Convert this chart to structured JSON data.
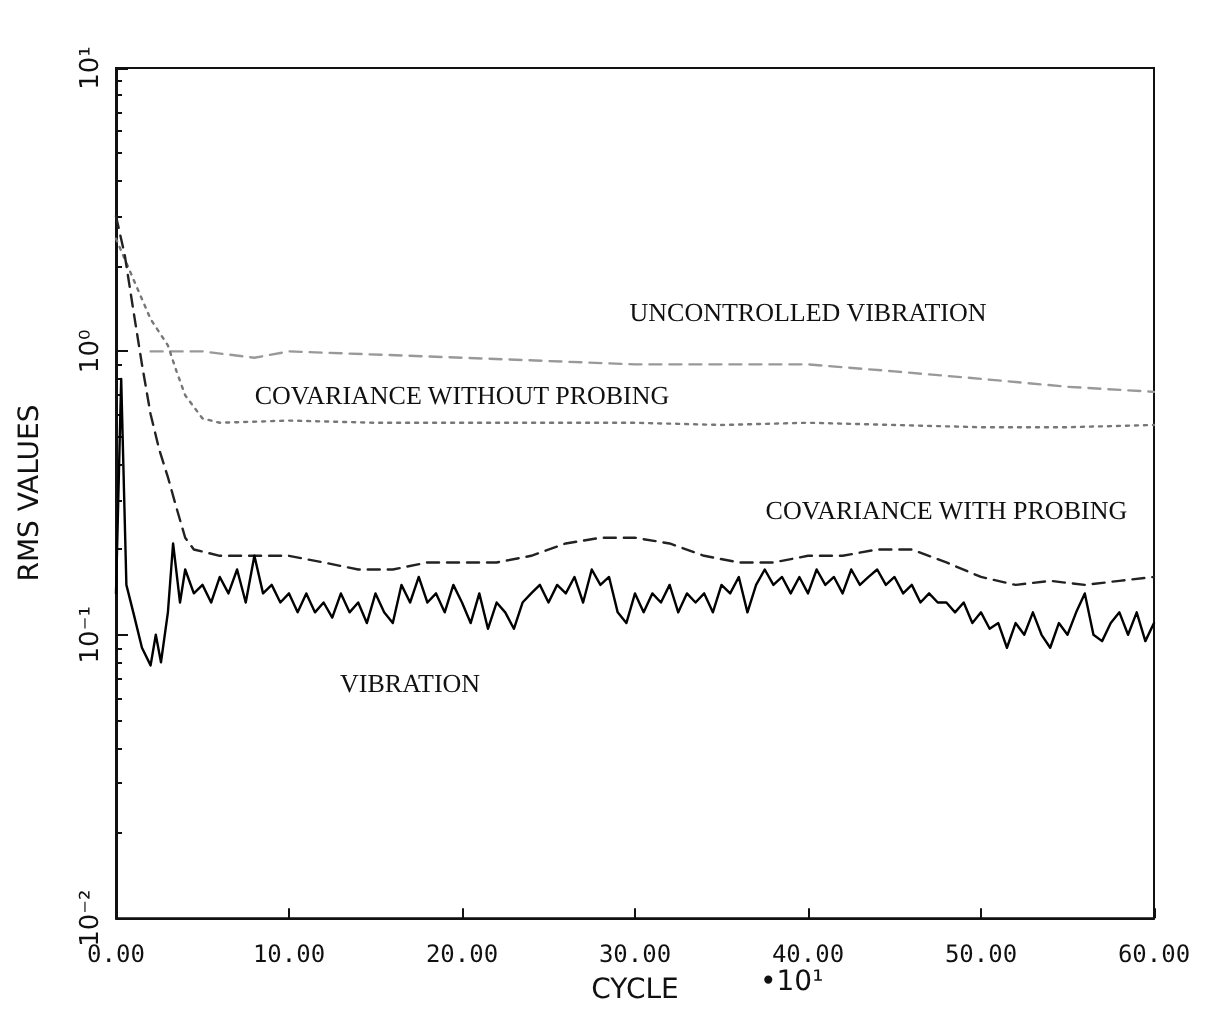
{
  "chart_data": {
    "type": "line",
    "xlabel": "CYCLE",
    "ylabel": "RMS VALUES",
    "annotations": [
      "•10¹"
    ],
    "log": "y",
    "grid": false,
    "legend": false,
    "marker": "none",
    "xlim": [
      0,
      60
    ],
    "xticks": [
      {
        "value": 0,
        "label": "0.00"
      },
      {
        "value": 10,
        "label": "10.00"
      },
      {
        "value": 20,
        "label": "20.00"
      },
      {
        "value": 30,
        "label": "30.00"
      },
      {
        "value": 40,
        "label": "40.00"
      },
      {
        "value": 50,
        "label": "50.00"
      },
      {
        "value": 60,
        "label": "60.00"
      }
    ],
    "ylim": [
      0.01,
      10
    ],
    "yticks": [
      {
        "value": 0.01,
        "label": "10⁻²"
      },
      {
        "value": 0.1,
        "label": "10⁻¹"
      },
      {
        "value": 1,
        "label": "10⁰"
      },
      {
        "value": 10,
        "label": "10¹"
      }
    ],
    "series": [
      {
        "name": "UNCONTROLLED VIBRATION",
        "color": "#999999",
        "line_style": "dashed",
        "x": [
          2,
          5,
          8,
          10,
          20,
          30,
          40,
          45,
          50,
          55,
          60
        ],
        "values": [
          1.0,
          1.0,
          0.95,
          1.0,
          0.95,
          0.9,
          0.9,
          0.85,
          0.8,
          0.75,
          0.72
        ]
      },
      {
        "name": "COVARIANCE WITHOUT PROBING",
        "color": "#777777",
        "line_style": "dotted",
        "x": [
          0,
          1,
          2,
          3,
          3.5,
          4,
          5,
          6,
          10,
          15,
          20,
          25,
          30,
          35,
          40,
          45,
          50,
          55,
          60
        ],
        "values": [
          2.5,
          1.8,
          1.3,
          1.05,
          0.85,
          0.7,
          0.58,
          0.56,
          0.57,
          0.56,
          0.56,
          0.56,
          0.56,
          0.55,
          0.56,
          0.55,
          0.54,
          0.54,
          0.55
        ]
      },
      {
        "name": "COVARIANCE WITH PROBING",
        "color": "#222222",
        "line_style": "dashed",
        "x": [
          0,
          0.5,
          1,
          1.5,
          2,
          2.5,
          3,
          3.5,
          4,
          4.5,
          6,
          8,
          10,
          12,
          14,
          16,
          18,
          20,
          22,
          24,
          26,
          28,
          30,
          32,
          34,
          36,
          38,
          40,
          42,
          44,
          45,
          46,
          48,
          50,
          52,
          54,
          56,
          58,
          60
        ],
        "values": [
          3.0,
          2.2,
          1.4,
          0.9,
          0.6,
          0.45,
          0.36,
          0.28,
          0.22,
          0.2,
          0.19,
          0.19,
          0.19,
          0.18,
          0.17,
          0.17,
          0.18,
          0.18,
          0.18,
          0.19,
          0.21,
          0.22,
          0.22,
          0.21,
          0.19,
          0.18,
          0.18,
          0.19,
          0.19,
          0.2,
          0.2,
          0.2,
          0.18,
          0.16,
          0.15,
          0.155,
          0.15,
          0.155,
          0.16
        ]
      },
      {
        "name": "VIBRATION",
        "color": "#000000",
        "line_style": "solid",
        "x": [
          0,
          0.3,
          0.6,
          1,
          1.5,
          2,
          2.3,
          2.6,
          3,
          3.3,
          3.7,
          4,
          4.5,
          5,
          5.5,
          6,
          6.5,
          7,
          7.5,
          8,
          8.5,
          9,
          9.5,
          10,
          10.5,
          11,
          11.5,
          12,
          12.5,
          13,
          13.5,
          14,
          14.5,
          15,
          15.5,
          16,
          16.5,
          17,
          17.5,
          18,
          18.5,
          19,
          19.5,
          20,
          20.5,
          21,
          21.5,
          22,
          22.5,
          23,
          23.5,
          24,
          24.5,
          25,
          25.5,
          26,
          26.5,
          27,
          27.5,
          28,
          28.5,
          29,
          29.5,
          30,
          30.5,
          31,
          31.5,
          32,
          32.5,
          33,
          33.5,
          34,
          34.5,
          35,
          35.5,
          36,
          36.5,
          37,
          37.5,
          38,
          38.5,
          39,
          39.5,
          40,
          40.5,
          41,
          41.5,
          42,
          42.5,
          43,
          43.5,
          44,
          44.5,
          45,
          45.5,
          46,
          46.5,
          47,
          47.5,
          48,
          48.5,
          49,
          49.5,
          50,
          50.5,
          51,
          51.5,
          52,
          52.5,
          53,
          53.5,
          54,
          54.5,
          55,
          55.5,
          56,
          56.5,
          57,
          57.5,
          58,
          58.5,
          59,
          59.5,
          60
        ],
        "values": [
          0.14,
          0.8,
          0.15,
          0.12,
          0.09,
          0.078,
          0.1,
          0.08,
          0.12,
          0.21,
          0.13,
          0.17,
          0.14,
          0.15,
          0.13,
          0.16,
          0.14,
          0.17,
          0.13,
          0.19,
          0.14,
          0.15,
          0.13,
          0.14,
          0.12,
          0.14,
          0.12,
          0.13,
          0.115,
          0.14,
          0.12,
          0.13,
          0.11,
          0.14,
          0.12,
          0.11,
          0.15,
          0.13,
          0.16,
          0.13,
          0.14,
          0.12,
          0.15,
          0.13,
          0.11,
          0.14,
          0.105,
          0.13,
          0.12,
          0.105,
          0.13,
          0.14,
          0.15,
          0.13,
          0.15,
          0.14,
          0.16,
          0.13,
          0.17,
          0.15,
          0.16,
          0.12,
          0.11,
          0.14,
          0.12,
          0.14,
          0.13,
          0.15,
          0.12,
          0.14,
          0.13,
          0.14,
          0.12,
          0.15,
          0.14,
          0.16,
          0.12,
          0.15,
          0.17,
          0.15,
          0.16,
          0.14,
          0.16,
          0.14,
          0.17,
          0.15,
          0.16,
          0.14,
          0.17,
          0.15,
          0.16,
          0.17,
          0.15,
          0.16,
          0.14,
          0.15,
          0.13,
          0.14,
          0.13,
          0.13,
          0.12,
          0.13,
          0.11,
          0.12,
          0.105,
          0.11,
          0.09,
          0.11,
          0.1,
          0.12,
          0.1,
          0.09,
          0.11,
          0.1,
          0.12,
          0.14,
          0.1,
          0.095,
          0.11,
          0.12,
          0.1,
          0.12,
          0.095,
          0.11
        ]
      }
    ]
  }
}
